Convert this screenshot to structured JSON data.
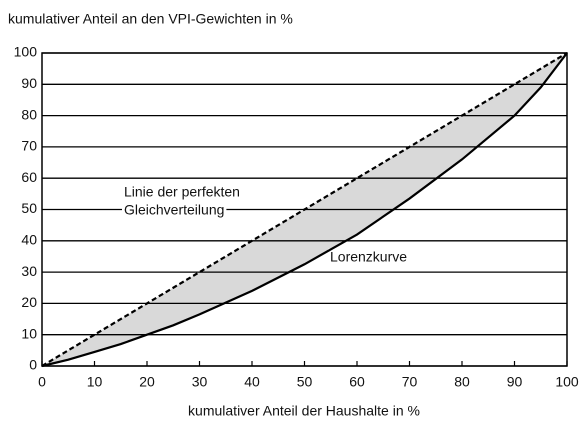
{
  "chart_data": {
    "type": "line",
    "y_axis_label": "kumulativer Anteil an den VPI-Gewichten in %",
    "x_axis_label": "kumulativer Anteil der Haushalte in %",
    "x": [
      0,
      5,
      10,
      15,
      20,
      25,
      30,
      40,
      50,
      60,
      70,
      80,
      90,
      95,
      100
    ],
    "series": [
      {
        "color": "#000000",
        "dashed": false,
        "values": [
          0,
          2,
          4.5,
          7,
          10,
          13,
          16.5,
          24,
          32.5,
          42,
          53.5,
          66,
          80,
          89,
          100
        ]
      },
      {
        "color": "#000000",
        "dashed": true,
        "values": [
          0,
          5,
          10,
          15,
          20,
          25,
          30,
          40,
          50,
          60,
          70,
          80,
          90,
          95,
          100
        ]
      }
    ],
    "fill_between_color": "#d9d9d9",
    "annotations": [
      "Linie der perfekten",
      "Gleichverteilung",
      "Lorenzkurve"
    ],
    "xlim": [
      0,
      100
    ],
    "ylim": [
      0,
      100
    ],
    "xticks": [
      0,
      10,
      20,
      30,
      40,
      50,
      60,
      70,
      80,
      90,
      100
    ],
    "yticks": [
      0,
      10,
      20,
      30,
      40,
      50,
      60,
      70,
      80,
      90,
      100
    ],
    "grid": true
  }
}
